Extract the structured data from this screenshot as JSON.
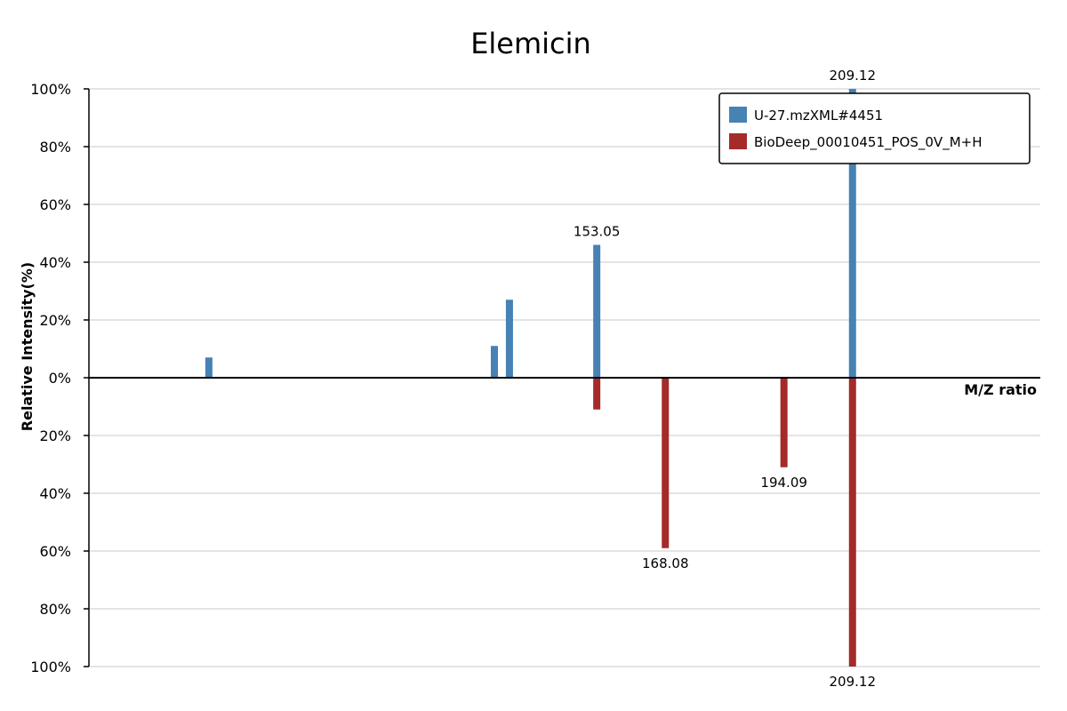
{
  "chart_data": {
    "type": "bar",
    "title": "Elemicin",
    "xlabel": "M/Z ratio",
    "ylabel": "Relative Intensity(%)",
    "ylim": [
      -100,
      100
    ],
    "yticks": [
      "100%",
      "80%",
      "60%",
      "40%",
      "20%",
      "0%",
      "20%",
      "40%",
      "60%",
      "80%",
      "100%"
    ],
    "grid": true,
    "legend_position": "top-right",
    "series": [
      {
        "name": "U-27.mzXML#4451",
        "color": "#4682b4",
        "direction": "up",
        "peaks": [
          {
            "mz": 68.0,
            "intensity": 7,
            "label": ""
          },
          {
            "mz": 130.6,
            "intensity": 11,
            "label": ""
          },
          {
            "mz": 133.9,
            "intensity": 27,
            "label": ""
          },
          {
            "mz": 153.05,
            "intensity": 46,
            "label": "153.05"
          },
          {
            "mz": 209.12,
            "intensity": 100,
            "label": "209.12"
          }
        ]
      },
      {
        "name": "BioDeep_00010451_POS_0V_M+H",
        "color": "#a52a2a",
        "direction": "down",
        "peaks": [
          {
            "mz": 153.05,
            "intensity": 11,
            "label": ""
          },
          {
            "mz": 168.08,
            "intensity": 59,
            "label": "168.08"
          },
          {
            "mz": 194.09,
            "intensity": 31,
            "label": "194.09"
          },
          {
            "mz": 209.12,
            "intensity": 100,
            "label": "209.12"
          }
        ]
      }
    ],
    "x_range": [
      41.7,
      250.3
    ]
  }
}
